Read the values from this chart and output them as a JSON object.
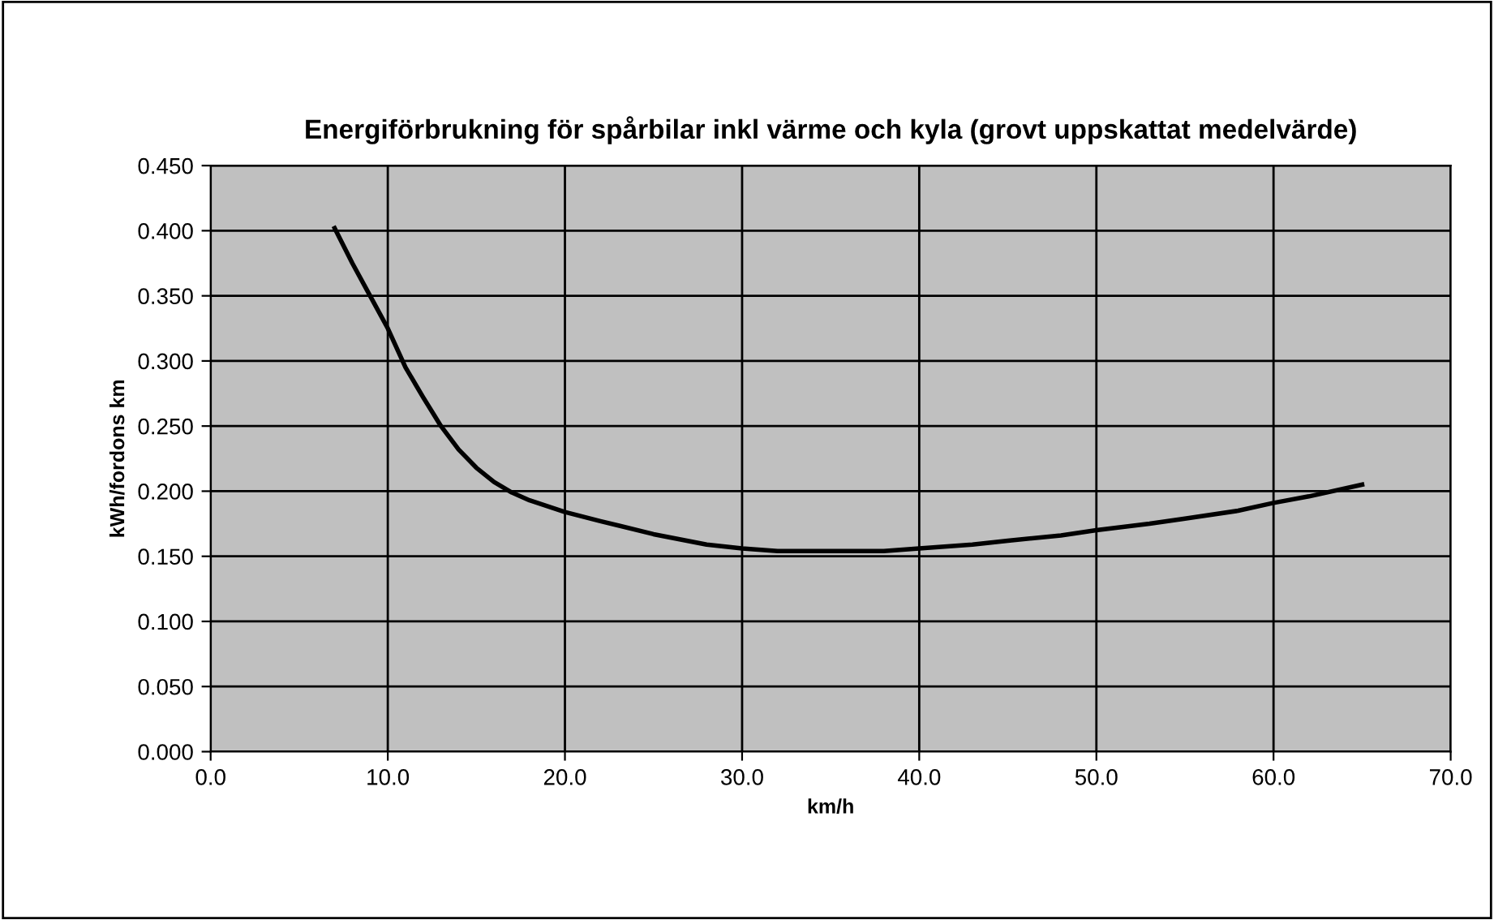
{
  "chart_data": {
    "type": "line",
    "title": "Energiförbrukning för spårbilar inkl värme och kyla (grovt uppskattat medelvärde)",
    "xlabel": "km/h",
    "ylabel": "kWh/fordons km",
    "series": [
      {
        "color": "#000000",
        "x": [
          7,
          8,
          9,
          10,
          11,
          12,
          13,
          14,
          15,
          16,
          17,
          18,
          20,
          22,
          25,
          28,
          30,
          32,
          35,
          38,
          40,
          43,
          45,
          48,
          50,
          53,
          55,
          58,
          60,
          62,
          65
        ],
        "values": [
          0.402,
          0.375,
          0.35,
          0.325,
          0.295,
          0.272,
          0.25,
          0.232,
          0.218,
          0.207,
          0.199,
          0.193,
          0.184,
          0.177,
          0.167,
          0.159,
          0.156,
          0.154,
          0.154,
          0.154,
          0.156,
          0.159,
          0.162,
          0.166,
          0.17,
          0.175,
          0.179,
          0.185,
          0.191,
          0.196,
          0.205
        ]
      }
    ],
    "xlim": [
      0,
      70
    ],
    "ylim": [
      0,
      0.45
    ],
    "xticks": [
      {
        "value": 0,
        "label": "0.0"
      },
      {
        "value": 10,
        "label": "10.0"
      },
      {
        "value": 20,
        "label": "20.0"
      },
      {
        "value": 30,
        "label": "30.0"
      },
      {
        "value": 40,
        "label": "40.0"
      },
      {
        "value": 50,
        "label": "50.0"
      },
      {
        "value": 60,
        "label": "60.0"
      },
      {
        "value": 70,
        "label": "70.0"
      }
    ],
    "yticks": [
      {
        "value": 0,
        "label": "0.000"
      },
      {
        "value": 0.05,
        "label": "0.050"
      },
      {
        "value": 0.1,
        "label": "0.100"
      },
      {
        "value": 0.15,
        "label": "0.150"
      },
      {
        "value": 0.2,
        "label": "0.200"
      },
      {
        "value": 0.25,
        "label": "0.250"
      },
      {
        "value": 0.3,
        "label": "0.300"
      },
      {
        "value": 0.35,
        "label": "0.350"
      },
      {
        "value": 0.4,
        "label": "0.400"
      },
      {
        "value": 0.45,
        "label": "0.450"
      }
    ],
    "grid": true,
    "marker": "none",
    "line_style": "solid",
    "legend": false
  }
}
